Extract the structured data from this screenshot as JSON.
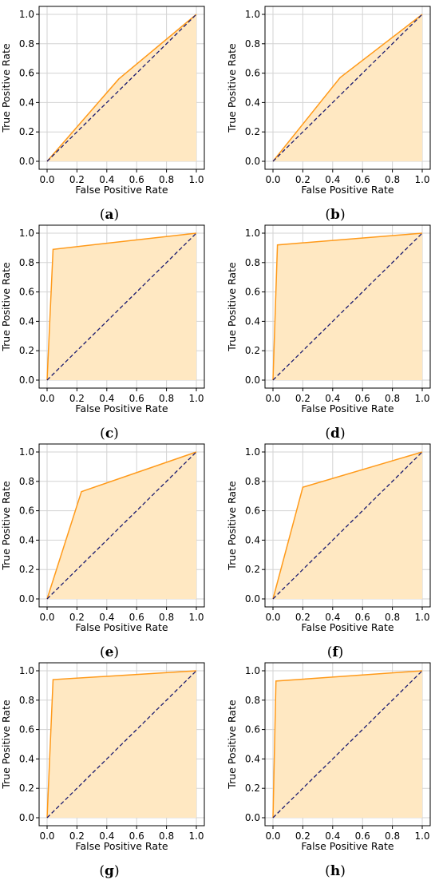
{
  "chart_data": [
    {
      "panel": "a",
      "type": "line",
      "xlabel": "False Positive Rate",
      "ylabel": "True Positive Rate",
      "xlim": [
        0,
        1
      ],
      "ylim": [
        0,
        1
      ],
      "xticks": [
        "0.0",
        "0.2",
        "0.4",
        "0.6",
        "0.8",
        "1.0"
      ],
      "yticks": [
        "0.0",
        "0.2",
        "0.4",
        "0.6",
        "0.8",
        "1.0"
      ],
      "grid": true,
      "series": [
        {
          "x": [
            0,
            0.48,
            1
          ],
          "y": [
            0,
            0.56,
            1
          ],
          "color": "#ff9a1a",
          "fill": "#ffe8c2"
        },
        {
          "x": [
            0,
            1
          ],
          "y": [
            0,
            1
          ],
          "color": "#1a1a6e",
          "style": "dashed"
        }
      ]
    },
    {
      "panel": "b",
      "type": "line",
      "xlabel": "False Positive Rate",
      "ylabel": "True Positive Rate",
      "xlim": [
        0,
        1
      ],
      "ylim": [
        0,
        1
      ],
      "xticks": [
        "0.0",
        "0.2",
        "0.4",
        "0.6",
        "0.8",
        "1.0"
      ],
      "yticks": [
        "0.0",
        "0.2",
        "0.4",
        "0.6",
        "0.8",
        "1.0"
      ],
      "grid": true,
      "series": [
        {
          "x": [
            0,
            0.45,
            1
          ],
          "y": [
            0,
            0.57,
            1
          ],
          "color": "#ff9a1a",
          "fill": "#ffe8c2"
        },
        {
          "x": [
            0,
            1
          ],
          "y": [
            0,
            1
          ],
          "color": "#1a1a6e",
          "style": "dashed"
        }
      ]
    },
    {
      "panel": "c",
      "type": "line",
      "xlabel": "False Positive Rate",
      "ylabel": "True Positive Rate",
      "xlim": [
        0,
        1
      ],
      "ylim": [
        0,
        1
      ],
      "xticks": [
        "0.0",
        "0.2",
        "0.4",
        "0.6",
        "0.8",
        "1.0"
      ],
      "yticks": [
        "0.0",
        "0.2",
        "0.4",
        "0.6",
        "0.8",
        "1.0"
      ],
      "grid": true,
      "series": [
        {
          "x": [
            0,
            0.04,
            1
          ],
          "y": [
            0,
            0.89,
            1
          ],
          "color": "#ff9a1a",
          "fill": "#ffe8c2"
        },
        {
          "x": [
            0,
            1
          ],
          "y": [
            0,
            1
          ],
          "color": "#1a1a6e",
          "style": "dashed"
        }
      ]
    },
    {
      "panel": "d",
      "type": "line",
      "xlabel": "False Positive Rate",
      "ylabel": "True Positive Rate",
      "xlim": [
        0,
        1
      ],
      "ylim": [
        0,
        1
      ],
      "xticks": [
        "0.0",
        "0.2",
        "0.4",
        "0.6",
        "0.8",
        "1.0"
      ],
      "yticks": [
        "0.0",
        "0.2",
        "0.4",
        "0.6",
        "0.8",
        "1.0"
      ],
      "grid": true,
      "series": [
        {
          "x": [
            0,
            0.03,
            1
          ],
          "y": [
            0,
            0.92,
            1
          ],
          "color": "#ff9a1a",
          "fill": "#ffe8c2"
        },
        {
          "x": [
            0,
            1
          ],
          "y": [
            0,
            1
          ],
          "color": "#1a1a6e",
          "style": "dashed"
        }
      ]
    },
    {
      "panel": "e",
      "type": "line",
      "xlabel": "False Positive Rate",
      "ylabel": "True Positive Rate",
      "xlim": [
        0,
        1
      ],
      "ylim": [
        0,
        1
      ],
      "xticks": [
        "0.0",
        "0.2",
        "0.4",
        "0.6",
        "0.8",
        "1.0"
      ],
      "yticks": [
        "0.0",
        "0.2",
        "0.4",
        "0.6",
        "0.8",
        "1.0"
      ],
      "grid": true,
      "series": [
        {
          "x": [
            0,
            0.23,
            1
          ],
          "y": [
            0,
            0.73,
            1
          ],
          "color": "#ff9a1a",
          "fill": "#ffe8c2"
        },
        {
          "x": [
            0,
            1
          ],
          "y": [
            0,
            1
          ],
          "color": "#1a1a6e",
          "style": "dashed"
        }
      ]
    },
    {
      "panel": "f",
      "type": "line",
      "xlabel": "False Positive Rate",
      "ylabel": "True Positive Rate",
      "xlim": [
        0,
        1
      ],
      "ylim": [
        0,
        1
      ],
      "xticks": [
        "0.0",
        "0.2",
        "0.4",
        "0.6",
        "0.8",
        "1.0"
      ],
      "yticks": [
        "0.0",
        "0.2",
        "0.4",
        "0.6",
        "0.8",
        "1.0"
      ],
      "grid": true,
      "series": [
        {
          "x": [
            0,
            0.2,
            1
          ],
          "y": [
            0,
            0.76,
            1
          ],
          "color": "#ff9a1a",
          "fill": "#ffe8c2"
        },
        {
          "x": [
            0,
            1
          ],
          "y": [
            0,
            1
          ],
          "color": "#1a1a6e",
          "style": "dashed"
        }
      ]
    },
    {
      "panel": "g",
      "type": "line",
      "xlabel": "False Positive Rate",
      "ylabel": "True Positive Rate",
      "xlim": [
        0,
        1
      ],
      "ylim": [
        0,
        1
      ],
      "xticks": [
        "0.0",
        "0.2",
        "0.4",
        "0.6",
        "0.8",
        "1.0"
      ],
      "yticks": [
        "0.0",
        "0.2",
        "0.4",
        "0.6",
        "0.8",
        "1.0"
      ],
      "grid": true,
      "series": [
        {
          "x": [
            0,
            0.04,
            1
          ],
          "y": [
            0,
            0.94,
            1
          ],
          "color": "#ff9a1a",
          "fill": "#ffe8c2"
        },
        {
          "x": [
            0,
            1
          ],
          "y": [
            0,
            1
          ],
          "color": "#1a1a6e",
          "style": "dashed"
        }
      ]
    },
    {
      "panel": "h",
      "type": "line",
      "xlabel": "False Positive Rate",
      "ylabel": "True Positive Rate",
      "xlim": [
        0,
        1
      ],
      "ylim": [
        0,
        1
      ],
      "xticks": [
        "0.0",
        "0.2",
        "0.4",
        "0.6",
        "0.8",
        "1.0"
      ],
      "yticks": [
        "0.0",
        "0.2",
        "0.4",
        "0.6",
        "0.8",
        "1.0"
      ],
      "grid": true,
      "series": [
        {
          "x": [
            0,
            0.02,
            1
          ],
          "y": [
            0,
            0.93,
            1
          ],
          "color": "#ff9a1a",
          "fill": "#ffe8c2"
        },
        {
          "x": [
            0,
            1
          ],
          "y": [
            0,
            1
          ],
          "color": "#1a1a6e",
          "style": "dashed"
        }
      ]
    }
  ],
  "captions": [
    {
      "open": "(",
      "letter": "a",
      "close": ")"
    },
    {
      "open": "(",
      "letter": "b",
      "close": ")"
    },
    {
      "open": "(",
      "letter": "c",
      "close": ")"
    },
    {
      "open": "(",
      "letter": "d",
      "close": ")"
    },
    {
      "open": "(",
      "letter": "e",
      "close": ")"
    },
    {
      "open": "(",
      "letter": "f",
      "close": ")"
    },
    {
      "open": "(",
      "letter": "g",
      "close": ")"
    },
    {
      "open": "(",
      "letter": "h",
      "close": ")"
    }
  ]
}
